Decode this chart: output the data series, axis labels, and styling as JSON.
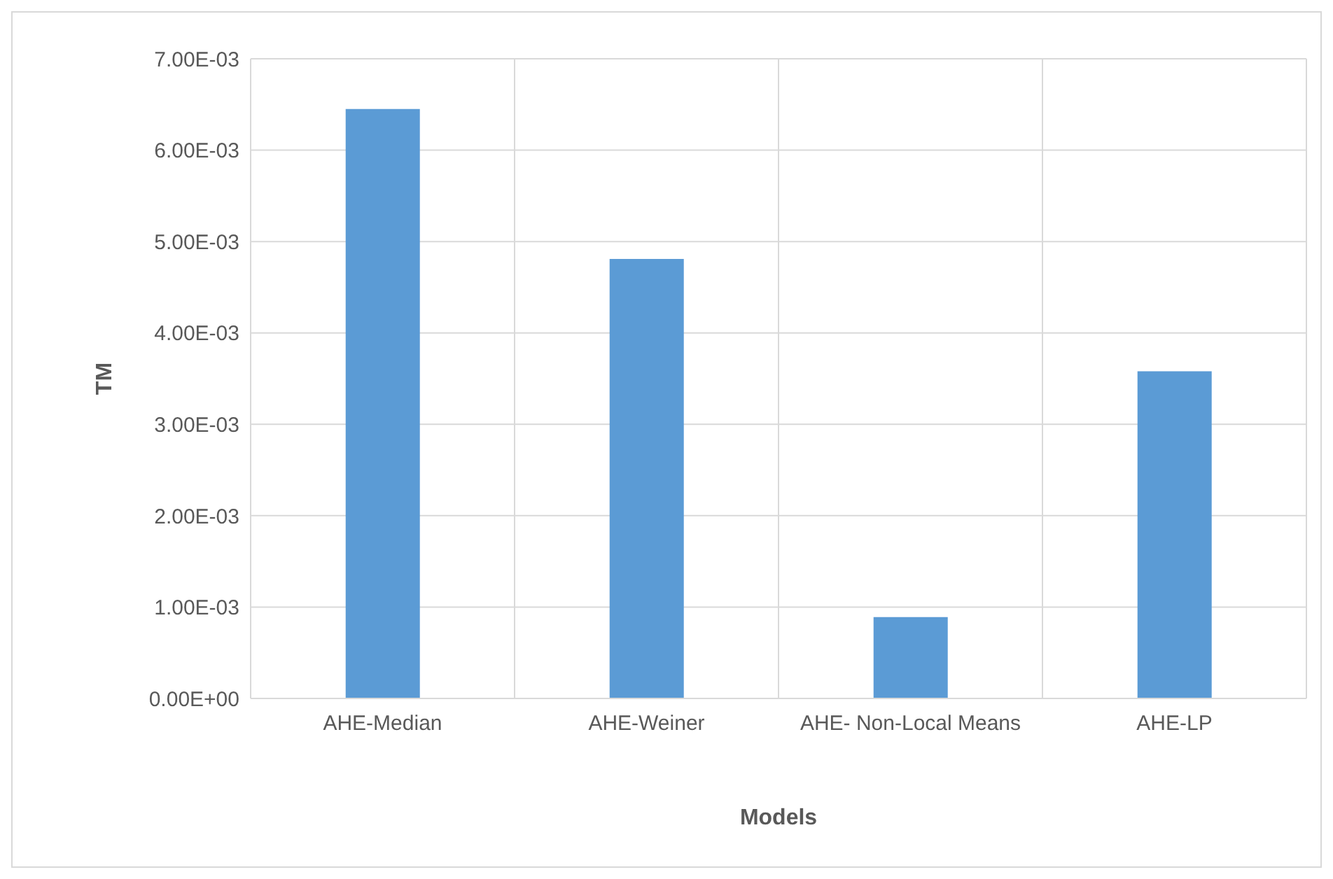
{
  "chart_data": {
    "type": "bar",
    "xlabel": "Models",
    "ylabel": "TM",
    "categories": [
      "AHE-Median",
      "AHE-Weiner",
      "AHE- Non-Local Means",
      "AHE-LP"
    ],
    "values": [
      0.00645,
      0.00481,
      0.00089,
      0.00358
    ],
    "color": "#5b9bd5",
    "ylim": [
      0,
      0.007
    ],
    "yticks": [
      {
        "value": 0,
        "label": "0.00E+00"
      },
      {
        "value": 0.001,
        "label": "1.00E-03"
      },
      {
        "value": 0.002,
        "label": "2.00E-03"
      },
      {
        "value": 0.003,
        "label": "3.00E-03"
      },
      {
        "value": 0.004,
        "label": "4.00E-03"
      },
      {
        "value": 0.005,
        "label": "5.00E-03"
      },
      {
        "value": 0.006,
        "label": "6.00E-03"
      },
      {
        "value": 0.007,
        "label": "7.00E-03"
      }
    ],
    "grid": true
  }
}
